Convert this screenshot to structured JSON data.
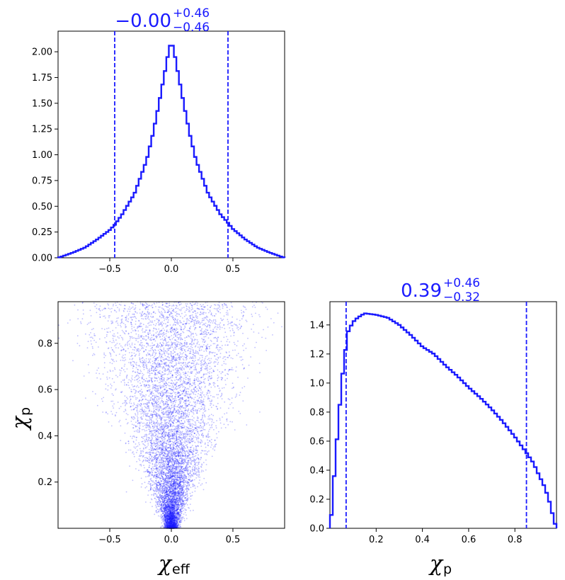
{
  "chart_data": [
    {
      "id": "chi_eff_hist",
      "type": "line",
      "title": {
        "value": "−0.00",
        "plus": "+0.46",
        "minus": "−0.46"
      },
      "xlabel": "",
      "ylabel": "",
      "xlim": [
        -0.92,
        0.92
      ],
      "ylim": [
        0.0,
        2.2
      ],
      "xticks": [
        -0.5,
        0.0,
        0.5
      ],
      "xtick_labels": [
        "−0.5",
        "0.0",
        "0.5"
      ],
      "yticks": [
        0.0,
        0.25,
        0.5,
        0.75,
        1.0,
        1.25,
        1.5,
        1.75,
        2.0
      ],
      "ytick_labels": [
        "0.00",
        "0.25",
        "0.50",
        "0.75",
        "1.00",
        "1.25",
        "1.50",
        "1.75",
        "2.00"
      ],
      "vlines": [
        -0.46,
        0.46
      ],
      "grid": false,
      "color": "#1a1aff",
      "series": [
        {
          "x": [
            -0.92,
            -0.8,
            -0.7,
            -0.6,
            -0.5,
            -0.46,
            -0.4,
            -0.3,
            -0.2,
            -0.15,
            -0.1,
            -0.05,
            -0.02,
            0.0,
            0.02,
            0.05,
            0.1,
            0.15,
            0.2,
            0.3,
            0.4,
            0.46,
            0.5,
            0.6,
            0.7,
            0.8,
            0.92
          ],
          "y": [
            0.0,
            0.05,
            0.1,
            0.18,
            0.27,
            0.32,
            0.42,
            0.62,
            0.95,
            1.2,
            1.5,
            1.82,
            2.02,
            2.1,
            2.02,
            1.82,
            1.5,
            1.2,
            0.95,
            0.62,
            0.42,
            0.34,
            0.28,
            0.18,
            0.1,
            0.05,
            0.0
          ]
        }
      ]
    },
    {
      "id": "scatter",
      "type": "scatter",
      "xlabel": {
        "symbol": "χ",
        "sub": "eff"
      },
      "ylabel": {
        "symbol": "χ",
        "sub": "p"
      },
      "xlim": [
        -0.92,
        0.92
      ],
      "ylim": [
        0.0,
        0.98
      ],
      "xticks": [
        -0.5,
        0.0,
        0.5
      ],
      "xtick_labels": [
        "−0.5",
        "0.0",
        "0.5"
      ],
      "yticks": [
        0.2,
        0.4,
        0.6,
        0.8
      ],
      "ytick_labels": [
        "0.2",
        "0.4",
        "0.6",
        "0.8"
      ],
      "grid": false,
      "color": "#1a1aff",
      "note_points": "dense cloud of samples shaped like an inverted cone; concentrated near χ_eff = 0 at low χ_p, spreading to |χ_eff| ≈ 0.8 at χ_p ≈ 0.6"
    },
    {
      "id": "chi_p_hist",
      "type": "line",
      "title": {
        "value": "0.39",
        "plus": "+0.46",
        "minus": "−0.32"
      },
      "xlabel": {
        "symbol": "χ",
        "sub": "p"
      },
      "ylabel": "",
      "xlim": [
        0.0,
        0.98
      ],
      "ylim": [
        0.0,
        1.56
      ],
      "xticks": [
        0.2,
        0.4,
        0.6,
        0.8
      ],
      "xtick_labels": [
        "0.2",
        "0.4",
        "0.6",
        "0.8"
      ],
      "yticks": [
        0.0,
        0.2,
        0.4,
        0.6,
        0.8,
        1.0,
        1.2,
        1.4
      ],
      "ytick_labels": [
        "0.0",
        "0.2",
        "0.4",
        "0.6",
        "0.8",
        "1.0",
        "1.2",
        "1.4"
      ],
      "vlines": [
        0.07,
        0.85
      ],
      "grid": false,
      "color": "#1a1aff",
      "series": [
        {
          "x": [
            0.0,
            0.01,
            0.02,
            0.04,
            0.06,
            0.08,
            0.1,
            0.12,
            0.15,
            0.2,
            0.25,
            0.3,
            0.35,
            0.4,
            0.45,
            0.5,
            0.55,
            0.6,
            0.65,
            0.7,
            0.75,
            0.8,
            0.85,
            0.88,
            0.9,
            0.93,
            0.95,
            0.97,
            0.98
          ],
          "y": [
            0.0,
            0.15,
            0.4,
            0.8,
            1.15,
            1.36,
            1.42,
            1.45,
            1.48,
            1.47,
            1.45,
            1.4,
            1.33,
            1.25,
            1.2,
            1.12,
            1.05,
            0.97,
            0.9,
            0.82,
            0.73,
            0.63,
            0.52,
            0.45,
            0.38,
            0.28,
            0.18,
            0.05,
            0.0
          ]
        }
      ]
    }
  ]
}
